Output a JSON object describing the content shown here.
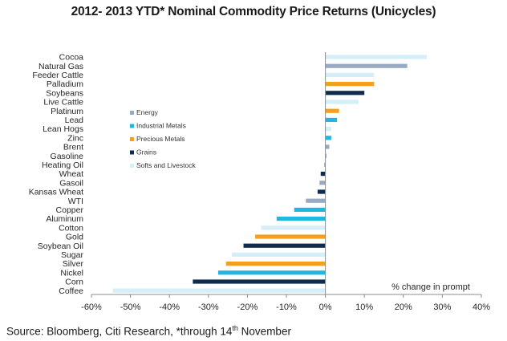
{
  "colors": {
    "Energy": "#97a9c3",
    "Industrial Metals": "#20b8e0",
    "Precious Metals": "#f3a01f",
    "Grains": "#0f2c4f",
    "Softs and Livestock": "#d5eef8"
  },
  "source": {
    "prefix": "Source: Bloomberg, Citi Research, *through 14",
    "sup": "th",
    "suffix": " November"
  },
  "chart_data": {
    "type": "bar",
    "orientation": "horizontal",
    "title": "2012- 2013 YTD* Nominal Commodity Price Returns (Unicycles)",
    "xlabel": "% change in prompt",
    "ylabel": "",
    "xlim": [
      -60,
      40
    ],
    "xticks": [
      -60,
      -50,
      -40,
      -30,
      -20,
      -10,
      0,
      10,
      20,
      30,
      40
    ],
    "tick_format": "%",
    "grid": false,
    "legend_position": "left-center",
    "legend": [
      "Energy",
      "Industrial Metals",
      "Precious Metals",
      "Grains",
      "Softs and Livestock"
    ],
    "bars": [
      {
        "label": "Cocoa",
        "value": 26,
        "group": "Softs and Livestock"
      },
      {
        "label": "Natural Gas",
        "value": 21,
        "group": "Energy"
      },
      {
        "label": "Feeder Cattle",
        "value": 12.5,
        "group": "Softs and Livestock"
      },
      {
        "label": "Palladium",
        "value": 12.5,
        "group": "Precious Metals"
      },
      {
        "label": "Soybeans",
        "value": 10,
        "group": "Grains"
      },
      {
        "label": "Live Cattle",
        "value": 8.5,
        "group": "Softs and Livestock"
      },
      {
        "label": "Platinum",
        "value": 3.5,
        "group": "Precious Metals"
      },
      {
        "label": "Lead",
        "value": 3,
        "group": "Industrial Metals"
      },
      {
        "label": "Lean Hogs",
        "value": 1.5,
        "group": "Softs and Livestock"
      },
      {
        "label": "Zinc",
        "value": 1.5,
        "group": "Industrial Metals"
      },
      {
        "label": "Brent",
        "value": 1,
        "group": "Energy"
      },
      {
        "label": "Gasoline",
        "value": 0.3,
        "group": "Energy"
      },
      {
        "label": "Heating Oil",
        "value": -0.3,
        "group": "Energy"
      },
      {
        "label": "Wheat",
        "value": -1.2,
        "group": "Grains"
      },
      {
        "label": "Gasoil",
        "value": -1.5,
        "group": "Energy"
      },
      {
        "label": "Kansas Wheat",
        "value": -2,
        "group": "Grains"
      },
      {
        "label": "WTI",
        "value": -5,
        "group": "Energy"
      },
      {
        "label": "Copper",
        "value": -8,
        "group": "Industrial Metals"
      },
      {
        "label": "Aluminum",
        "value": -12.5,
        "group": "Industrial Metals"
      },
      {
        "label": "Cotton",
        "value": -16.5,
        "group": "Softs and Livestock"
      },
      {
        "label": "Gold",
        "value": -18,
        "group": "Precious Metals"
      },
      {
        "label": "Soybean Oil",
        "value": -21,
        "group": "Grains"
      },
      {
        "label": "Sugar",
        "value": -24,
        "group": "Softs and Livestock"
      },
      {
        "label": "Silver",
        "value": -25.5,
        "group": "Precious Metals"
      },
      {
        "label": "Nickel",
        "value": -27.5,
        "group": "Industrial Metals"
      },
      {
        "label": "Corn",
        "value": -34,
        "group": "Grains"
      },
      {
        "label": "Coffee",
        "value": -54.5,
        "group": "Softs and Livestock"
      }
    ]
  }
}
